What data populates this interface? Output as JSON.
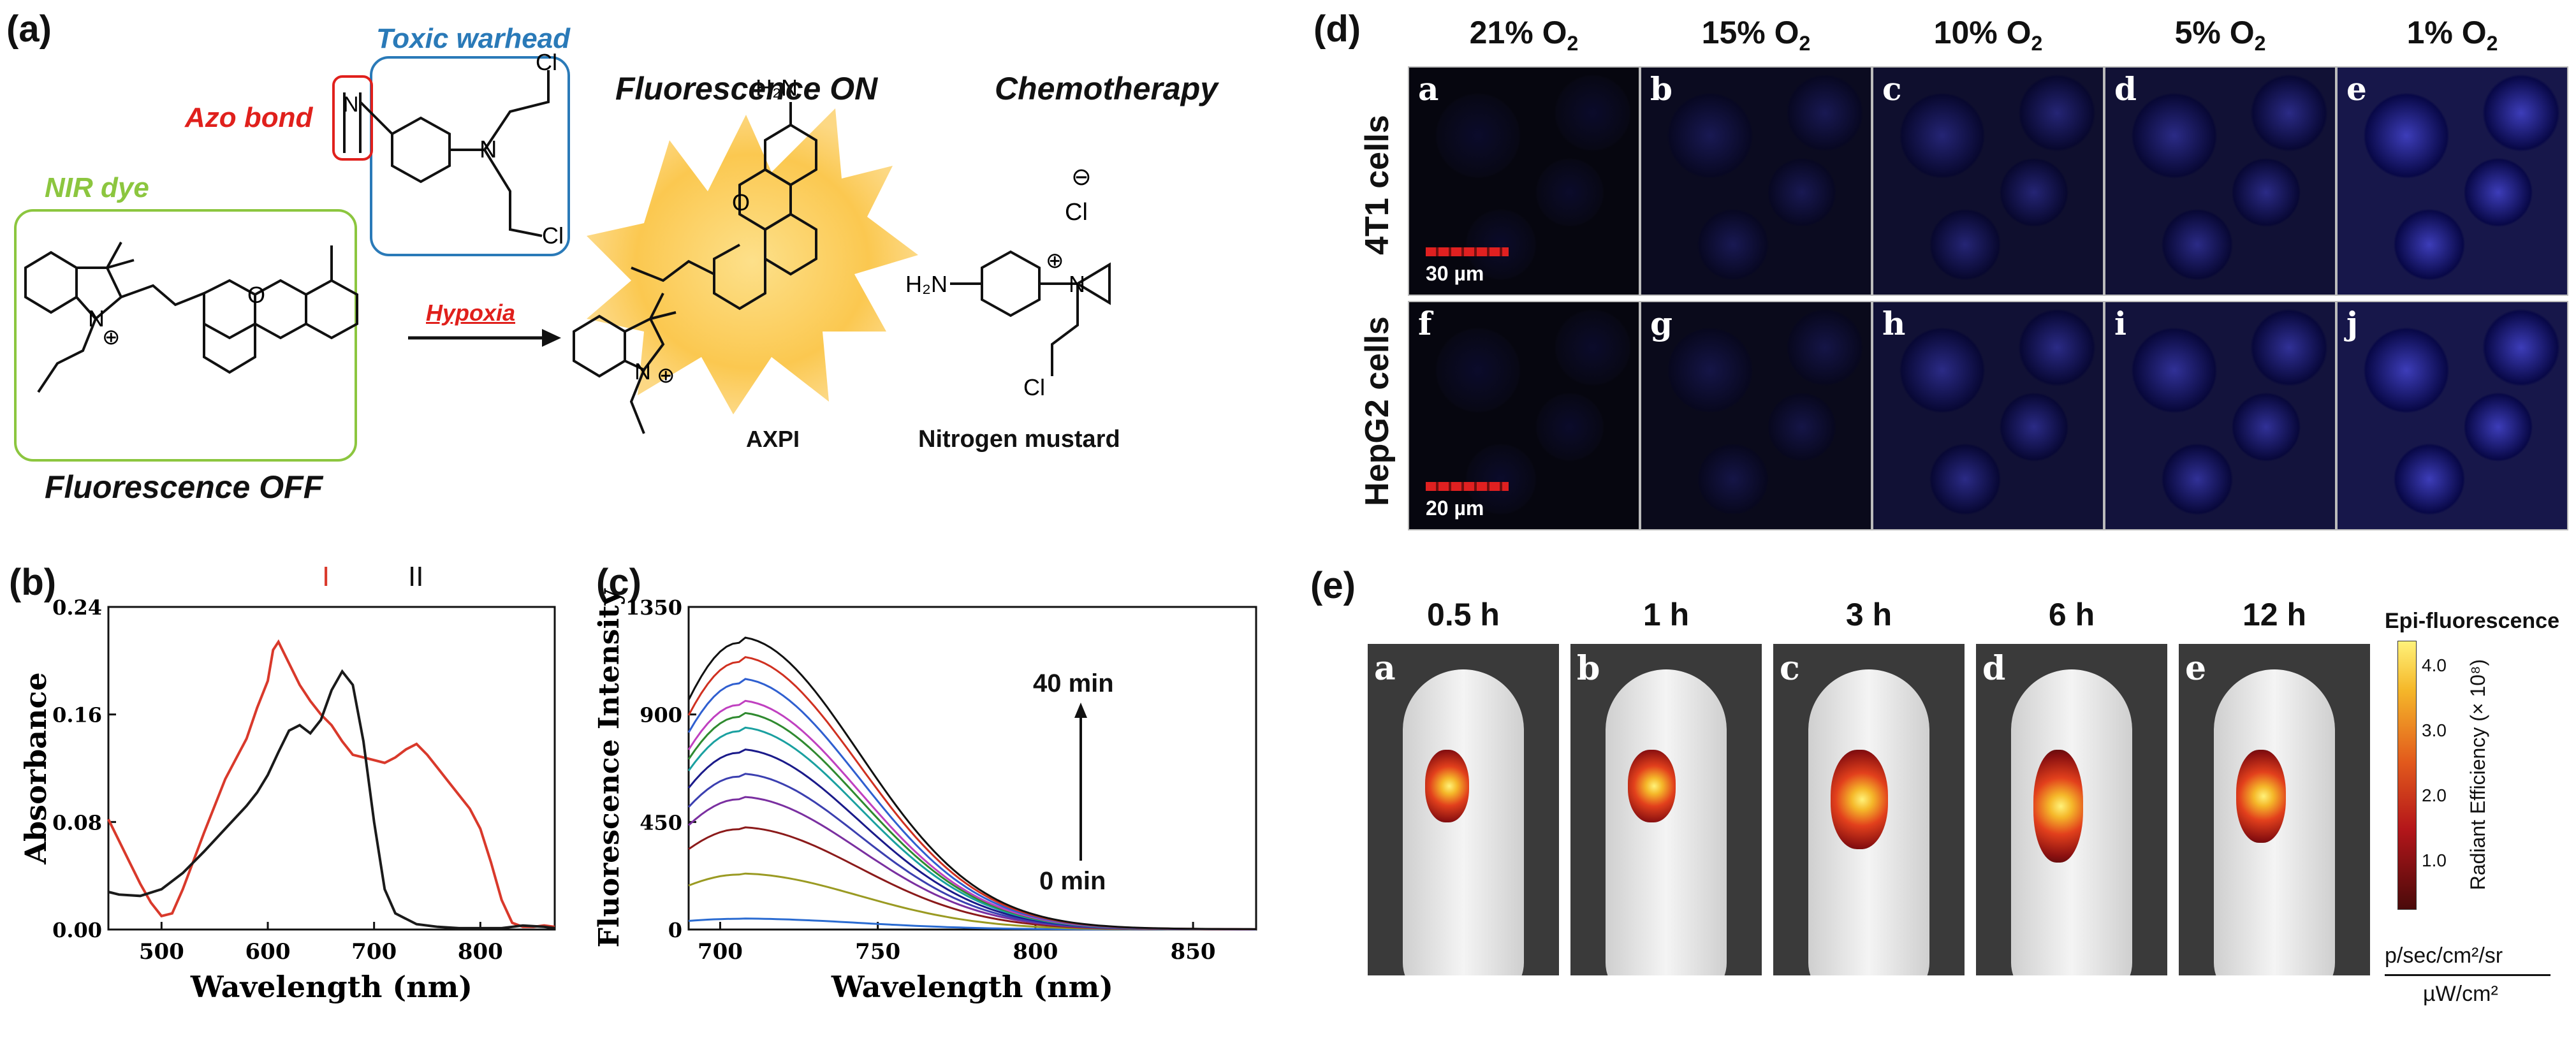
{
  "panel_a": {
    "label": "(a)",
    "toxic_warhead": "Toxic warhead",
    "azo_bond": "Azo bond",
    "nir_dye": "NIR dye",
    "fluorescence_off": "Fluorescence OFF",
    "fluorescence_on": "Fluorescence ON",
    "chemotherapy": "Chemotherapy",
    "hypoxia": "Hypoxia",
    "axpi": "AXPI",
    "nitrogen_mustard": "Nitrogen mustard",
    "atoms": {
      "n": "N",
      "o": "O",
      "cl": "Cl",
      "h2n": "H₂N",
      "plus": "⊕",
      "minus": "⊖"
    }
  },
  "panel_b": {
    "label": "(b)",
    "peak_I": "I",
    "peak_II": "II"
  },
  "panel_c": {
    "label": "(c)",
    "time_top": "40 min",
    "time_bottom": "0 min"
  },
  "panel_d": {
    "label": "(d)",
    "columns": [
      "21% O",
      "15% O",
      "10% O",
      "5% O",
      "1% O"
    ],
    "subscript": "2",
    "rows": [
      "4T1 cells",
      "HepG2 cells"
    ],
    "letters_top": [
      "a",
      "b",
      "c",
      "d",
      "e"
    ],
    "letters_bottom": [
      "f",
      "g",
      "h",
      "i",
      "j"
    ],
    "scale_top": "30 µm",
    "scale_bottom": "20 µm"
  },
  "panel_e": {
    "label": "(e)",
    "times": [
      "0.5 h",
      "1 h",
      "3 h",
      "6 h",
      "12 h"
    ],
    "letters": [
      "a",
      "b",
      "c",
      "d",
      "e"
    ],
    "colorbar_title": "Epi-fluorescence",
    "colorbar_axis": "Radiant Efficiency (× 10⁸)",
    "colorbar_ticks": [
      "4.0",
      "3.0",
      "2.0",
      "1.0"
    ],
    "units_top": "p/sec/cm²/sr",
    "units_bottom": "µW/cm²"
  },
  "chart_data": [
    {
      "type": "line",
      "panel": "b",
      "xlabel": "Wavelength (nm)",
      "ylabel": "Absorbance",
      "xlim": [
        450,
        870
      ],
      "ylim": [
        0,
        0.24
      ],
      "xticks": [
        500,
        600,
        700,
        800
      ],
      "yticks": [
        "0.00",
        "0.08",
        "0.16",
        "0.24"
      ],
      "series": [
        {
          "color": "#d9392b",
          "x": [
            450,
            460,
            470,
            480,
            490,
            500,
            510,
            520,
            540,
            560,
            580,
            590,
            600,
            605,
            610,
            620,
            630,
            640,
            650,
            660,
            670,
            680,
            690,
            700,
            710,
            720,
            730,
            740,
            750,
            760,
            770,
            780,
            790,
            800,
            810,
            820,
            830,
            840,
            850,
            860,
            870
          ],
          "y": [
            0.082,
            0.066,
            0.05,
            0.034,
            0.02,
            0.01,
            0.012,
            0.03,
            0.072,
            0.112,
            0.142,
            0.165,
            0.185,
            0.208,
            0.214,
            0.198,
            0.182,
            0.17,
            0.16,
            0.152,
            0.14,
            0.13,
            0.128,
            0.126,
            0.124,
            0.128,
            0.134,
            0.138,
            0.13,
            0.12,
            0.11,
            0.1,
            0.09,
            0.075,
            0.05,
            0.022,
            0.005,
            0.002,
            0.002,
            0.003,
            0.002
          ]
        },
        {
          "color": "#1a1a1a",
          "x": [
            450,
            460,
            480,
            500,
            520,
            540,
            560,
            580,
            590,
            600,
            610,
            620,
            630,
            640,
            650,
            660,
            670,
            680,
            690,
            700,
            710,
            720,
            740,
            760,
            780,
            800,
            820,
            840,
            860,
            870
          ],
          "y": [
            0.028,
            0.026,
            0.025,
            0.03,
            0.042,
            0.058,
            0.075,
            0.092,
            0.102,
            0.115,
            0.132,
            0.148,
            0.152,
            0.146,
            0.156,
            0.178,
            0.192,
            0.182,
            0.14,
            0.08,
            0.03,
            0.012,
            0.004,
            0.002,
            0.001,
            0.001,
            0.001,
            0.003,
            0.002,
            0.001
          ]
        }
      ]
    },
    {
      "type": "line",
      "panel": "c",
      "xlabel": "Wavelength (nm)",
      "ylabel": "Fluorescence Intensity",
      "xlim": [
        690,
        870
      ],
      "ylim": [
        0,
        1350
      ],
      "xticks": [
        700,
        750,
        800,
        850
      ],
      "yticks": [
        "0",
        "450",
        "900",
        "1350"
      ],
      "peak_x": 706,
      "series": [
        {
          "color": "#2a6bd1",
          "peak": 45
        },
        {
          "color": "#9a9a22",
          "peak": 230
        },
        {
          "color": "#8b1a1a",
          "peak": 420
        },
        {
          "color": "#7a2fa0",
          "peak": 545
        },
        {
          "color": "#3b3fb0",
          "peak": 640
        },
        {
          "color": "#1a1a8a",
          "peak": 740
        },
        {
          "color": "#1aa0a0",
          "peak": 830
        },
        {
          "color": "#2f8a2f",
          "peak": 890
        },
        {
          "color": "#c040c0",
          "peak": 940
        },
        {
          "color": "#2f5fd0",
          "peak": 1030
        },
        {
          "color": "#d03020",
          "peak": 1120
        },
        {
          "color": "#111111",
          "peak": 1200
        }
      ]
    }
  ]
}
